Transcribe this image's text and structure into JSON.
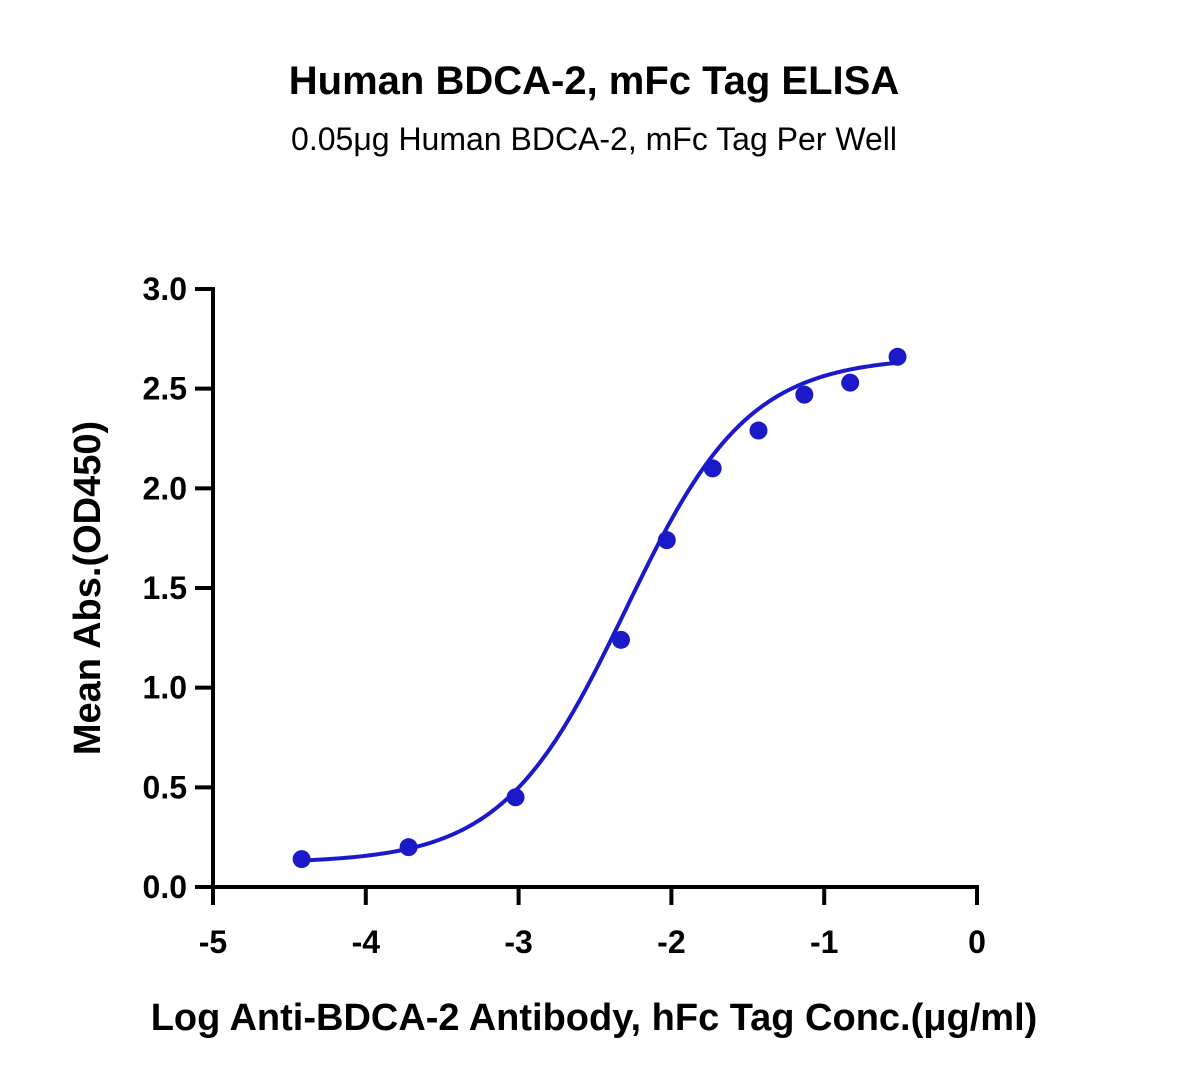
{
  "chart_data": {
    "type": "scatter",
    "title": "Human BDCA-2, mFc Tag ELISA",
    "subtitle": "0.05μg Human BDCA-2, mFc Tag Per Well",
    "xlabel": "Log Anti-BDCA-2 Antibody, hFc Tag Conc.(μg/ml)",
    "ylabel": "Mean Abs.(OD450)",
    "xlim": [
      -5,
      0
    ],
    "ylim": [
      0,
      3.0
    ],
    "x_ticks": [
      -5,
      -4,
      -3,
      -2,
      -1,
      0
    ],
    "x_tick_labels": [
      "-5",
      "-4",
      "-3",
      "-2",
      "-1",
      "0"
    ],
    "y_ticks": [
      0,
      0.5,
      1.0,
      1.5,
      2.0,
      2.5,
      3.0
    ],
    "y_tick_labels": [
      "0.0",
      "0.5",
      "1.0",
      "1.5",
      "2.0",
      "2.5",
      "3.0"
    ],
    "grid": false,
    "legend": "none",
    "color": "#1a1ac8",
    "series": [
      {
        "x": [
          -4.42,
          -3.72,
          -3.02,
          -2.33,
          -2.03,
          -1.73,
          -1.43,
          -1.13,
          -0.83,
          -0.52
        ],
        "y": [
          0.14,
          0.2,
          0.45,
          1.24,
          1.74,
          2.1,
          2.29,
          2.47,
          2.53,
          2.66
        ]
      }
    ],
    "fit": {
      "model": "4PL",
      "bottom": 0.12,
      "top": 2.66,
      "logEC50": -2.3,
      "hill": 1.08,
      "x_range": [
        -4.42,
        -0.52
      ]
    }
  }
}
